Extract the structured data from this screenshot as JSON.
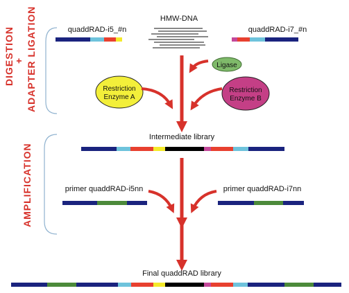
{
  "side_labels": {
    "digestion": "DIGESTION",
    "plus": "+",
    "adapter_ligation": "ADAPTER  LIGATION",
    "amplification": "AMPLIFICATION"
  },
  "labels": {
    "adapter_i5": "quaddRAD-i5_#n",
    "hmw_dna": "HMW-DNA",
    "adapter_i7": "quaddRAD-i7_#n",
    "ligase": "Ligase",
    "enzyme_a": [
      "Restriction",
      "Enzyme A"
    ],
    "enzyme_b": [
      "Restriction",
      "Enzyme B"
    ],
    "intermediate": "Intermediate library",
    "primer_i5": "primer quaddRAD-i5nn",
    "primer_i7": "primer quaddRAD-i7nn",
    "final": "Final quaddRAD library"
  },
  "colors": {
    "accent_red": "#d7322b",
    "navy": "#1a237e",
    "light_blue": "#6ec3dc",
    "red": "#e8402f",
    "yellow": "#f4ea2a",
    "black": "#000000",
    "magenta": "#c4489a",
    "green": "#4c8a3a",
    "ligase_fill": "#7fba6a",
    "enzyme_a_fill": "#f3ef3a",
    "enzyme_b_fill": "#c43f86",
    "bracket": "#8fb2cf"
  }
}
